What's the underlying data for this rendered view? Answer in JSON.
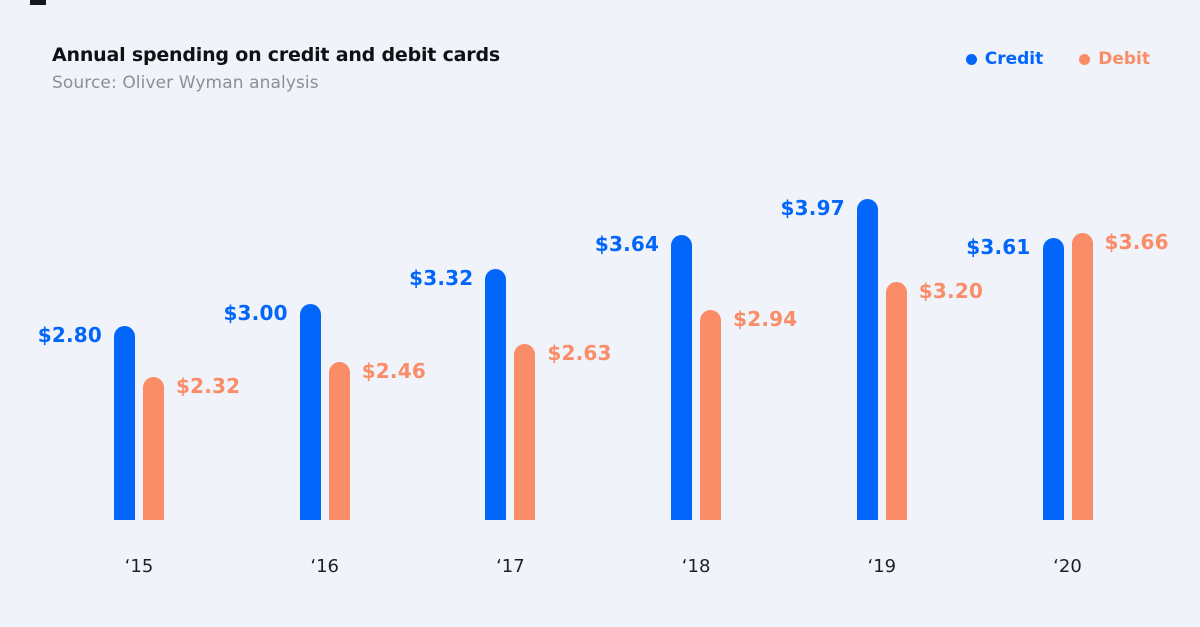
{
  "header": {
    "title": "Annual spending on credit and debit cards",
    "source": "Source: Oliver Wyman analysis"
  },
  "legend": [
    {
      "label": "Credit",
      "color": "#0366FB"
    },
    {
      "label": "Debit",
      "color": "#FB8C68"
    }
  ],
  "colors": {
    "background": "#F0F3F9",
    "credit": "#0366FB",
    "debit": "#FB8C68",
    "title_text": "#0F1115",
    "source_text": "#8A8F99",
    "axis_text": "#1C2029"
  },
  "chart_data": {
    "type": "bar",
    "title": "Annual spending on credit and debit cards",
    "subtitle": "Source: Oliver Wyman analysis",
    "categories": [
      "‘15",
      "‘16",
      "‘17",
      "‘18",
      "‘19",
      "‘20"
    ],
    "series": [
      {
        "name": "Credit",
        "color": "#0366FB",
        "values": [
          2.8,
          3.0,
          3.32,
          3.64,
          3.97,
          3.61
        ],
        "labels": [
          "$2.80",
          "$3.00",
          "$3.32",
          "$3.64",
          "$3.97",
          "$3.61"
        ]
      },
      {
        "name": "Debit",
        "color": "#FB8C68",
        "values": [
          2.32,
          2.46,
          2.63,
          2.94,
          3.2,
          3.66
        ],
        "labels": [
          "$2.32",
          "$2.46",
          "$2.63",
          "$2.94",
          "$3.20",
          "$3.66"
        ]
      }
    ],
    "value_prefix": "$",
    "grid": false,
    "y_axis_visible": false,
    "legend_position": "top-right",
    "ylim": [
      1.0,
      4.8
    ]
  }
}
